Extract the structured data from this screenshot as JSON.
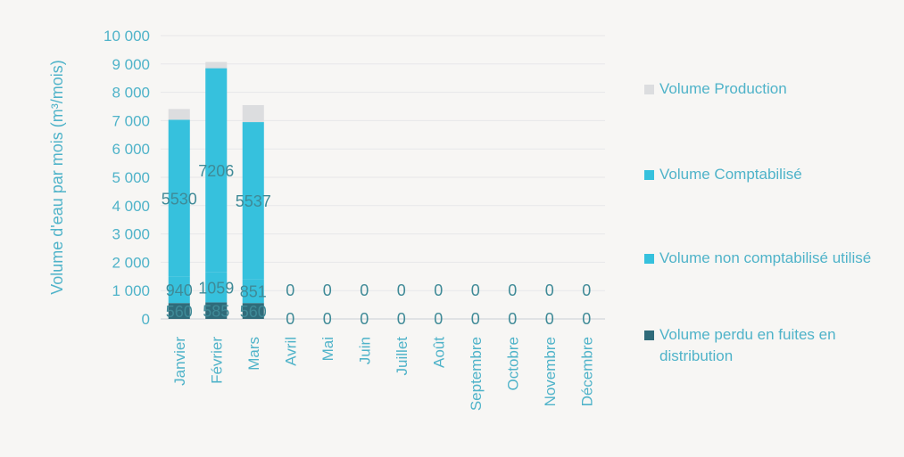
{
  "chart_data": {
    "type": "bar",
    "stacked": true,
    "ylabel": "Volume d'eau par mois (m³/mois)",
    "xlabel": "",
    "ylim": [
      0,
      10000
    ],
    "yticks": [
      0,
      1000,
      2000,
      3000,
      4000,
      5000,
      6000,
      7000,
      8000,
      9000,
      10000
    ],
    "ytick_labels": [
      "0",
      "1 000",
      "2 000",
      "3 000",
      "4 000",
      "5 000",
      "6 000",
      "7 000",
      "8 000",
      "9 000",
      "10 000"
    ],
    "categories": [
      "Janvier",
      "Février",
      "Mars",
      "Avril",
      "Mai",
      "Juin",
      "Juillet",
      "Août",
      "Septembre",
      "Octobre",
      "Novembre",
      "Décembre"
    ],
    "grid": true,
    "legend_position": "right",
    "series": [
      {
        "name": "Volume perdu en fuites en distribution",
        "color": "#2f6b7a",
        "values": [
          560,
          585,
          560,
          0,
          0,
          0,
          0,
          0,
          0,
          0,
          0,
          0
        ],
        "data_labels": [
          "560",
          "585",
          "560",
          "0",
          "0",
          "0",
          "0",
          "0",
          "0",
          "0",
          "0",
          "0"
        ]
      },
      {
        "name": "Volume non comptabilisé utilisé",
        "color": "#36c1dd",
        "values": [
          940,
          1059,
          851,
          0,
          0,
          0,
          0,
          0,
          0,
          0,
          0,
          0
        ],
        "data_labels": [
          "940",
          "1059",
          "851",
          "0",
          "0",
          "0",
          "0",
          "0",
          "0",
          "0",
          "0",
          "0"
        ]
      },
      {
        "name": "Volume Comptabilisé",
        "color": "#36c1dd",
        "values": [
          5530,
          7206,
          5537,
          0,
          0,
          0,
          0,
          0,
          0,
          0,
          0,
          0
        ],
        "data_labels": [
          "5530",
          "7206",
          "5537",
          "",
          "",
          "",
          "",
          "",
          "",
          "",
          "",
          ""
        ]
      },
      {
        "name": "Volume Production",
        "color": "#dcdddf",
        "values": [
          380,
          220,
          600,
          0,
          0,
          0,
          0,
          0,
          0,
          0,
          0,
          0
        ],
        "data_labels": [
          "",
          "",
          "",
          "",
          "",
          "",
          "",
          "",
          "",
          "",
          "",
          ""
        ]
      }
    ],
    "legend_order": [
      3,
      2,
      1,
      0
    ]
  }
}
